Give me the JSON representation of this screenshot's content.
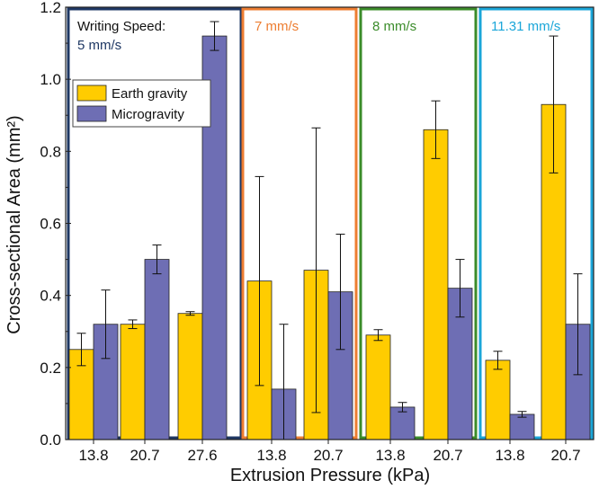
{
  "chart_data": {
    "type": "bar",
    "title": "",
    "xlabel": "Extrusion Pressure (kPa)",
    "ylabel": "Cross-sectional Area (mm²)",
    "ylim": [
      0,
      1.2
    ],
    "yticks": [
      "0.0",
      "0.2",
      "0.4",
      "0.6",
      "0.8",
      "1.0",
      "1.2"
    ],
    "legend": [
      {
        "name": "Earth gravity",
        "color": "#ffcc00"
      },
      {
        "name": "Microgravity",
        "color": "#6e6eb4"
      }
    ],
    "panels": [
      {
        "label_lines": [
          "Writing Speed:",
          "5 mm/s"
        ],
        "label_colors": [
          "#111111",
          "#1f3864"
        ],
        "border_color": "#1f3864",
        "groups": [
          {
            "x_label": "13.8",
            "earth": 0.25,
            "earth_err": 0.045,
            "micro": 0.32,
            "micro_err": 0.095
          },
          {
            "x_label": "20.7",
            "earth": 0.32,
            "earth_err": 0.012,
            "micro": 0.5,
            "micro_err": 0.04
          },
          {
            "x_label": "27.6",
            "earth": 0.35,
            "earth_err": 0.005,
            "micro": 1.12,
            "micro_err": 0.04
          }
        ]
      },
      {
        "label_lines": [
          "7 mm/s"
        ],
        "label_colors": [
          "#ed7d31"
        ],
        "border_color": "#ed7d31",
        "groups": [
          {
            "x_label": "13.8",
            "earth": 0.44,
            "earth_err": 0.29,
            "micro": 0.14,
            "micro_err": 0.18
          },
          {
            "x_label": "20.7",
            "earth": 0.47,
            "earth_err": 0.395,
            "micro": 0.41,
            "micro_err": 0.16
          }
        ]
      },
      {
        "label_lines": [
          "8 mm/s"
        ],
        "label_colors": [
          "#3b8c2a"
        ],
        "border_color": "#3b8c2a",
        "groups": [
          {
            "x_label": "13.8",
            "earth": 0.29,
            "earth_err": 0.015,
            "micro": 0.09,
            "micro_err": 0.013
          },
          {
            "x_label": "20.7",
            "earth": 0.86,
            "earth_err": 0.08,
            "micro": 0.42,
            "micro_err": 0.08
          }
        ]
      },
      {
        "label_lines": [
          "11.31 mm/s"
        ],
        "label_colors": [
          "#1ba6d9"
        ],
        "border_color": "#1ba6d9",
        "groups": [
          {
            "x_label": "13.8",
            "earth": 0.22,
            "earth_err": 0.025,
            "micro": 0.07,
            "micro_err": 0.008
          },
          {
            "x_label": "20.7",
            "earth": 0.93,
            "earth_err": 0.19,
            "micro": 0.32,
            "micro_err": 0.14
          }
        ]
      }
    ]
  }
}
